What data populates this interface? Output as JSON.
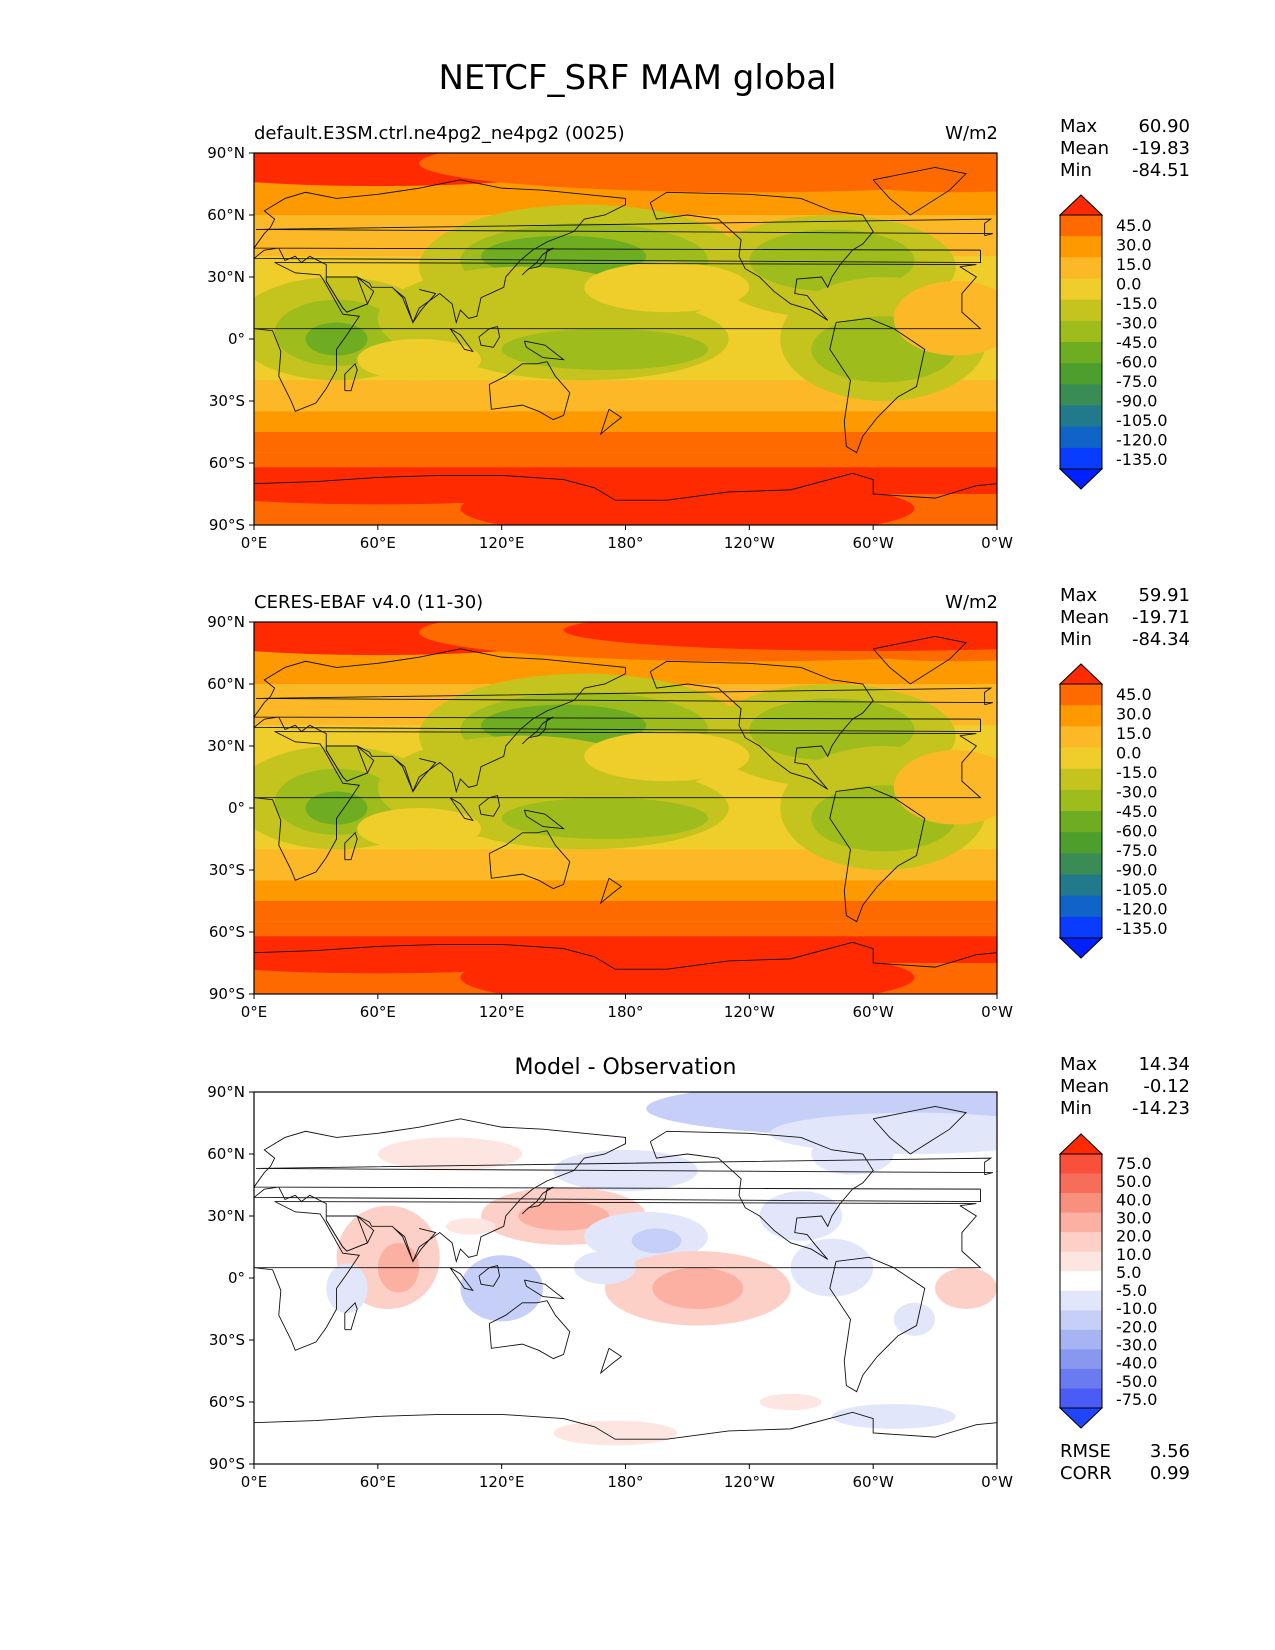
{
  "figure": {
    "title": "NETCF_SRF MAM global"
  },
  "chart_data": [
    {
      "type": "heatmap",
      "panel_title": "default.E3SM.ctrl.ne4pg2_ne4pg2 (0025)",
      "units": "W/m2",
      "stats": {
        "Max": "60.90",
        "Mean": "-19.83",
        "Min": "-84.51"
      },
      "x_ticks": [
        "0°E",
        "60°E",
        "120°E",
        "180°",
        "120°W",
        "60°W",
        "0°W"
      ],
      "y_ticks": [
        "90°N",
        "60°N",
        "30°N",
        "0°",
        "30°S",
        "60°S",
        "90°S"
      ],
      "colorbar": {
        "levels": [
          "45.0",
          "30.0",
          "15.0",
          "0.0",
          "-15.0",
          "-30.0",
          "-45.0",
          "-60.0",
          "-75.0",
          "-90.0",
          "-105.0",
          "-120.0",
          "-135.0"
        ],
        "colors": [
          "#ff2a00",
          "#ff6a00",
          "#ff9900",
          "#fdb827",
          "#efcd2b",
          "#c5c41f",
          "#9ebd1d",
          "#6eac21",
          "#4d9f2d",
          "#3a8c55",
          "#207a8c",
          "#1064c8",
          "#0a3cff",
          "#0020ff"
        ]
      }
    },
    {
      "type": "heatmap",
      "panel_title": "CERES-EBAF v4.0 (11-30)",
      "units": "W/m2",
      "stats": {
        "Max": "59.91",
        "Mean": "-19.71",
        "Min": "-84.34"
      },
      "x_ticks": [
        "0°E",
        "60°E",
        "120°E",
        "180°",
        "120°W",
        "60°W",
        "0°W"
      ],
      "y_ticks": [
        "90°N",
        "60°N",
        "30°N",
        "0°",
        "30°S",
        "60°S",
        "90°S"
      ],
      "colorbar": {
        "levels": [
          "45.0",
          "30.0",
          "15.0",
          "0.0",
          "-15.0",
          "-30.0",
          "-45.0",
          "-60.0",
          "-75.0",
          "-90.0",
          "-105.0",
          "-120.0",
          "-135.0"
        ],
        "colors": [
          "#ff2a00",
          "#ff6a00",
          "#ff9900",
          "#fdb827",
          "#efcd2b",
          "#c5c41f",
          "#9ebd1d",
          "#6eac21",
          "#4d9f2d",
          "#3a8c55",
          "#207a8c",
          "#1064c8",
          "#0a3cff",
          "#0020ff"
        ]
      }
    },
    {
      "type": "heatmap",
      "panel_title": "Model - Observation",
      "units": "",
      "stats": {
        "Max": "14.34",
        "Mean": "-0.12",
        "Min": "-14.23"
      },
      "extra_stats": {
        "RMSE": "3.56",
        "CORR": "0.99"
      },
      "x_ticks": [
        "0°E",
        "60°E",
        "120°E",
        "180°",
        "120°W",
        "60°W",
        "0°W"
      ],
      "y_ticks": [
        "90°N",
        "60°N",
        "30°N",
        "0°",
        "30°S",
        "60°S",
        "90°S"
      ],
      "colorbar": {
        "levels": [
          "75.0",
          "50.0",
          "40.0",
          "30.0",
          "20.0",
          "10.0",
          "5.0",
          "-5.0",
          "-10.0",
          "-20.0",
          "-30.0",
          "-40.0",
          "-50.0",
          "-75.0"
        ],
        "colors": [
          "#ff2a00",
          "#f8503a",
          "#f66d5a",
          "#f8907e",
          "#fbb0a2",
          "#fdd0c7",
          "#fde6e1",
          "#ffffff",
          "#e2e6fb",
          "#c6cff7",
          "#a7b4f3",
          "#8897f0",
          "#6a7bf0",
          "#4a5cf5",
          "#2045ff"
        ]
      }
    }
  ]
}
